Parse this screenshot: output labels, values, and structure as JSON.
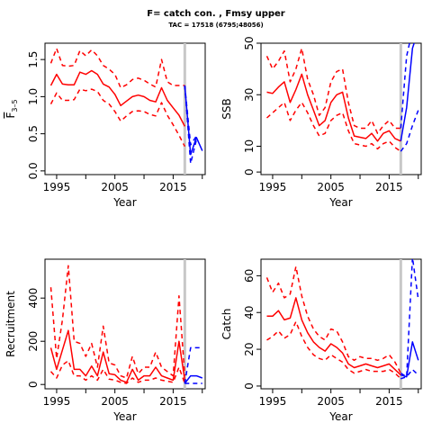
{
  "title": "F= catch con. , Fmsy upper",
  "subtitle": "TAC = 17518 (6795;48056)",
  "chart_data": [
    {
      "type": "line",
      "xlabel": "Year",
      "ylabel": "F̅ 3–5",
      "ylabel_parts": {
        "base": "F",
        "sub": "3–5"
      },
      "xlim": [
        1993,
        2020.5
      ],
      "ylim": [
        -0.05,
        1.72
      ],
      "xticks": [
        "1995",
        "2005",
        "2015"
      ],
      "yticks": [
        "0.0",
        "0.5",
        "1.0",
        "1.5"
      ],
      "vline_x": 2017,
      "series": [
        {
          "role": "historical",
          "color": "#ff0000",
          "dash": false,
          "x": [
            1994,
            1995,
            1996,
            1997,
            1998,
            1999,
            2000,
            2001,
            2002,
            2003,
            2004,
            2005,
            2006,
            2007,
            2008,
            2009,
            2010,
            2011,
            2012,
            2013,
            2014,
            2015,
            2016,
            2017
          ],
          "y": [
            1.15,
            1.3,
            1.17,
            1.16,
            1.16,
            1.33,
            1.3,
            1.35,
            1.3,
            1.17,
            1.13,
            1.03,
            0.88,
            0.94,
            1.0,
            1.02,
            1.0,
            0.95,
            0.93,
            1.12,
            0.95,
            0.85,
            0.75,
            0.6
          ]
        },
        {
          "role": "historical-upper",
          "color": "#ff0000",
          "dash": true,
          "x": [
            1994,
            1995,
            1996,
            1997,
            1998,
            1999,
            2000,
            2001,
            2002,
            2003,
            2004,
            2005,
            2006,
            2007,
            2008,
            2009,
            2010,
            2011,
            2012,
            2013,
            2014,
            2015,
            2016,
            2017
          ],
          "y": [
            1.45,
            1.65,
            1.42,
            1.41,
            1.42,
            1.62,
            1.55,
            1.63,
            1.55,
            1.42,
            1.37,
            1.3,
            1.12,
            1.16,
            1.23,
            1.25,
            1.22,
            1.17,
            1.13,
            1.5,
            1.2,
            1.15,
            1.15,
            1.15
          ]
        },
        {
          "role": "historical-lower",
          "color": "#ff0000",
          "dash": true,
          "x": [
            1994,
            1995,
            1996,
            1997,
            1998,
            1999,
            2000,
            2001,
            2002,
            2003,
            2004,
            2005,
            2006,
            2007,
            2008,
            2009,
            2010,
            2011,
            2012,
            2013,
            2014,
            2015,
            2016,
            2017
          ],
          "y": [
            0.9,
            1.05,
            0.95,
            0.95,
            0.96,
            1.1,
            1.08,
            1.1,
            1.07,
            0.95,
            0.9,
            0.8,
            0.67,
            0.74,
            0.8,
            0.81,
            0.8,
            0.76,
            0.74,
            0.92,
            0.75,
            0.62,
            0.48,
            0.33
          ]
        },
        {
          "role": "projection",
          "color": "#0000ff",
          "dash": false,
          "x": [
            2017,
            2018,
            2019,
            2020
          ],
          "y": [
            1.15,
            0.22,
            0.45,
            0.27
          ]
        },
        {
          "role": "projection-upper",
          "color": "#0000ff",
          "dash": true,
          "x": [
            2017,
            2018,
            2019
          ],
          "y": [
            1.15,
            0.35,
            0.47
          ]
        },
        {
          "role": "projection-lower",
          "color": "#0000ff",
          "dash": true,
          "x": [
            2017,
            2018,
            2019
          ],
          "y": [
            1.15,
            0.1,
            0.42
          ]
        }
      ]
    },
    {
      "type": "line",
      "xlabel": "Year",
      "ylabel": "SSB",
      "xlim": [
        1993,
        2020.5
      ],
      "ylim": [
        -1,
        50
      ],
      "xticks": [
        "1995",
        "2005",
        "2015"
      ],
      "yticks": [
        "0",
        "10",
        "30",
        "50"
      ],
      "vline_x": 2017,
      "series": [
        {
          "role": "historical",
          "color": "#ff0000",
          "dash": false,
          "x": [
            1994,
            1995,
            1996,
            1997,
            1998,
            1999,
            2000,
            2001,
            2002,
            2003,
            2004,
            2005,
            2006,
            2007,
            2008,
            2009,
            2010,
            2011,
            2012,
            2013,
            2014,
            2015,
            2016,
            2017
          ],
          "y": [
            31,
            30.5,
            33,
            35,
            27,
            32,
            38,
            30,
            24,
            18,
            20,
            27,
            30,
            31,
            21,
            14,
            13.5,
            13,
            15,
            12,
            15,
            16,
            13,
            12
          ]
        },
        {
          "role": "historical-upper",
          "color": "#ff0000",
          "dash": true,
          "x": [
            1994,
            1995,
            1996,
            1997,
            1998,
            1999,
            2000,
            2001,
            2002,
            2003,
            2004,
            2005,
            2006,
            2007,
            2008,
            2009,
            2010,
            2011,
            2012,
            2013,
            2014,
            2015,
            2016,
            2017
          ],
          "y": [
            45,
            40,
            43,
            47,
            35,
            40,
            48,
            36,
            30,
            22,
            25,
            35,
            39,
            40,
            27,
            18,
            17,
            17,
            20,
            15,
            18,
            20,
            17,
            17
          ]
        },
        {
          "role": "historical-lower",
          "color": "#ff0000",
          "dash": true,
          "x": [
            1994,
            1995,
            1996,
            1997,
            1998,
            1999,
            2000,
            2001,
            2002,
            2003,
            2004,
            2005,
            2006,
            2007,
            2008,
            2009,
            2010,
            2011,
            2012,
            2013,
            2014,
            2015,
            2016,
            2017
          ],
          "y": [
            21,
            23,
            25,
            27,
            20,
            24,
            27,
            23,
            18,
            14,
            15,
            20,
            22,
            23,
            16,
            11,
            10.5,
            10,
            11,
            9,
            11,
            12,
            9.5,
            8
          ]
        },
        {
          "role": "projection",
          "color": "#0000ff",
          "dash": false,
          "x": [
            2017,
            2018,
            2019,
            2020
          ],
          "y": [
            12,
            25,
            48,
            55
          ]
        },
        {
          "role": "projection-upper",
          "color": "#0000ff",
          "dash": true,
          "x": [
            2017,
            2018,
            2019
          ],
          "y": [
            17,
            45,
            55
          ]
        },
        {
          "role": "projection-lower",
          "color": "#0000ff",
          "dash": true,
          "x": [
            2017,
            2018,
            2019,
            2020
          ],
          "y": [
            8,
            11,
            18,
            24
          ]
        }
      ]
    },
    {
      "type": "line",
      "xlabel": "Year",
      "ylabel": "Recruitment",
      "xlim": [
        1993,
        2020.5
      ],
      "ylim": [
        -20,
        580
      ],
      "xticks": [
        "1995",
        "2005",
        "2015"
      ],
      "yticks": [
        "0",
        "200",
        "400"
      ],
      "vline_x": 2017,
      "series": [
        {
          "role": "historical",
          "color": "#ff0000",
          "dash": false,
          "x": [
            1994,
            1995,
            1996,
            1997,
            1998,
            1999,
            2000,
            2001,
            2002,
            2003,
            2004,
            2005,
            2006,
            2007,
            2008,
            2009,
            2010,
            2011,
            2012,
            2013,
            2014,
            2015,
            2016,
            2017
          ],
          "y": [
            170,
            70,
            160,
            250,
            70,
            70,
            40,
            85,
            40,
            150,
            50,
            45,
            20,
            10,
            70,
            20,
            40,
            40,
            80,
            40,
            30,
            20,
            200,
            20
          ]
        },
        {
          "role": "historical-upper",
          "color": "#ff0000",
          "dash": true,
          "x": [
            1994,
            1995,
            1996,
            1997,
            1998,
            1999,
            2000,
            2001,
            2002,
            2003,
            2004,
            2005,
            2006,
            2007,
            2008,
            2009,
            2010,
            2011,
            2012,
            2013,
            2014,
            2015,
            2016,
            2017
          ],
          "y": [
            450,
            120,
            300,
            550,
            200,
            190,
            130,
            190,
            80,
            270,
            100,
            90,
            40,
            30,
            130,
            50,
            80,
            80,
            150,
            80,
            60,
            40,
            410,
            40
          ]
        },
        {
          "role": "historical-lower",
          "color": "#ff0000",
          "dash": true,
          "x": [
            1994,
            1995,
            1996,
            1997,
            1998,
            1999,
            2000,
            2001,
            2002,
            2003,
            2004,
            2005,
            2006,
            2007,
            2008,
            2009,
            2010,
            2011,
            2012,
            2013,
            2014,
            2015,
            2016,
            2017
          ],
          "y": [
            60,
            30,
            90,
            110,
            40,
            40,
            20,
            40,
            20,
            70,
            25,
            20,
            10,
            5,
            30,
            10,
            20,
            20,
            30,
            20,
            15,
            10,
            80,
            5
          ]
        },
        {
          "role": "projection",
          "color": "#0000ff",
          "dash": false,
          "x": [
            2017,
            2018,
            2019,
            2020
          ],
          "y": [
            5,
            40,
            40,
            30
          ]
        },
        {
          "role": "projection-upper",
          "color": "#0000ff",
          "dash": true,
          "x": [
            2017,
            2018,
            2019,
            2020
          ],
          "y": [
            5,
            170,
            170,
            170
          ]
        },
        {
          "role": "projection-lower",
          "color": "#0000ff",
          "dash": true,
          "x": [
            2017,
            2018,
            2019,
            2020
          ],
          "y": [
            5,
            5,
            5,
            5
          ]
        }
      ]
    },
    {
      "type": "line",
      "xlabel": "Year",
      "ylabel": "Catch",
      "xlim": [
        1993,
        2020.5
      ],
      "ylim": [
        -1.5,
        69
      ],
      "xticks": [
        "1995",
        "2005",
        "2015"
      ],
      "yticks": [
        "0",
        "20",
        "40",
        "60"
      ],
      "vline_x": 2017,
      "series": [
        {
          "role": "historical",
          "color": "#ff0000",
          "dash": false,
          "x": [
            1994,
            1995,
            1996,
            1997,
            1998,
            1999,
            2000,
            2001,
            2002,
            2003,
            2004,
            2005,
            2006,
            2007,
            2008,
            2009,
            2010,
            2011,
            2012,
            2013,
            2014,
            2015,
            2016,
            2017
          ],
          "y": [
            38,
            38,
            41,
            36,
            37,
            48,
            36,
            29,
            24,
            21,
            19,
            23,
            21,
            18,
            12,
            10,
            11,
            12,
            11,
            10,
            11,
            12,
            9,
            6
          ]
        },
        {
          "role": "historical-upper",
          "color": "#ff0000",
          "dash": true,
          "x": [
            1994,
            1995,
            1996,
            1997,
            1998,
            1999,
            2000,
            2001,
            2002,
            2003,
            2004,
            2005,
            2006,
            2007,
            2008,
            2009,
            2010,
            2011,
            2012,
            2013,
            2014,
            2015,
            2016,
            2017
          ],
          "y": [
            59,
            51,
            56,
            48,
            50,
            65,
            49,
            38,
            31,
            27,
            25,
            31,
            30,
            24,
            16,
            14,
            16,
            15,
            15,
            14,
            15,
            17,
            13,
            7
          ]
        },
        {
          "role": "historical-lower",
          "color": "#ff0000",
          "dash": true,
          "x": [
            1994,
            1995,
            1996,
            1997,
            1998,
            1999,
            2000,
            2001,
            2002,
            2003,
            2004,
            2005,
            2006,
            2007,
            2008,
            2009,
            2010,
            2011,
            2012,
            2013,
            2014,
            2015,
            2016,
            2017
          ],
          "y": [
            25,
            27,
            30,
            26,
            28,
            35,
            27,
            21,
            17,
            15,
            14,
            17,
            15,
            13,
            9,
            7,
            8,
            9,
            8,
            8,
            8,
            9,
            7,
            4
          ]
        },
        {
          "role": "projection",
          "color": "#0000ff",
          "dash": false,
          "x": [
            2017,
            2018,
            2019,
            2020
          ],
          "y": [
            6,
            5,
            24,
            14
          ]
        },
        {
          "role": "projection-upper",
          "color": "#0000ff",
          "dash": true,
          "x": [
            2017,
            2018,
            2019,
            2020
          ],
          "y": [
            7,
            5,
            70,
            47
          ]
        },
        {
          "role": "projection-lower",
          "color": "#0000ff",
          "dash": true,
          "x": [
            2017,
            2018,
            2019,
            2020
          ],
          "y": [
            4,
            5,
            9,
            6
          ]
        }
      ]
    }
  ]
}
